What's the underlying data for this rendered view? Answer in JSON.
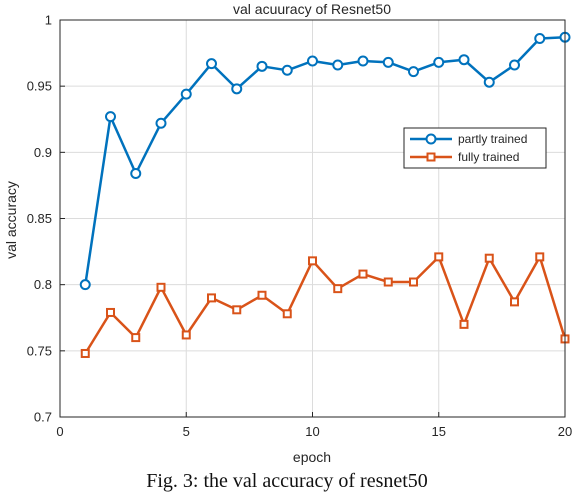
{
  "chart_data": {
    "type": "line",
    "title": "val acuuracy of Resnet50",
    "xlabel": "epoch",
    "ylabel": "val accuracy",
    "xlim": [
      0,
      20
    ],
    "ylim": [
      0.7,
      1.0
    ],
    "xticks": [
      "0",
      "5",
      "10",
      "15",
      "20"
    ],
    "yticks": [
      "0.7",
      "0.75",
      "0.8",
      "0.85",
      "0.9",
      "0.95",
      "1"
    ],
    "grid": true,
    "legend_position": "right",
    "x": [
      1,
      2,
      3,
      4,
      5,
      6,
      7,
      8,
      9,
      10,
      11,
      12,
      13,
      14,
      15,
      16,
      17,
      18,
      19,
      20
    ],
    "series": [
      {
        "name": "partly trained",
        "color": "#0072bd",
        "marker": "circle",
        "values": [
          0.8,
          0.927,
          0.884,
          0.922,
          0.944,
          0.967,
          0.948,
          0.965,
          0.962,
          0.969,
          0.966,
          0.969,
          0.968,
          0.961,
          0.968,
          0.97,
          0.953,
          0.966,
          0.986,
          0.987
        ]
      },
      {
        "name": "fully trained",
        "color": "#d95319",
        "marker": "square",
        "values": [
          0.748,
          0.779,
          0.76,
          0.798,
          0.762,
          0.79,
          0.781,
          0.792,
          0.778,
          0.818,
          0.797,
          0.808,
          0.802,
          0.802,
          0.821,
          0.77,
          0.82,
          0.787,
          0.821,
          0.759
        ]
      }
    ]
  },
  "caption": "Fig. 3: the val accuracy of resnet50"
}
